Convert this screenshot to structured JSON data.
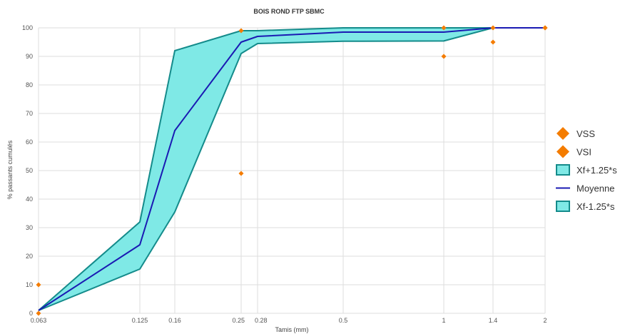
{
  "chart_data": {
    "type": "line",
    "title": "BOIS ROND FTP SBMC",
    "xlabel": "Tamis (mm)",
    "ylabel": "% passants cumulés",
    "ylim": [
      0,
      100
    ],
    "y_ticks": [
      0,
      10,
      20,
      30,
      40,
      50,
      60,
      70,
      80,
      90,
      100
    ],
    "x_ticks": [
      "0.063",
      "0.125",
      "0.16",
      "0.25",
      "0.28",
      "0.5",
      "1",
      "1.4",
      "2"
    ],
    "x": [
      0.063,
      0.125,
      0.16,
      0.25,
      0.28,
      0.5,
      1,
      1.4,
      2
    ],
    "grid": true,
    "legend_position": "right",
    "series": [
      {
        "name": "VSS",
        "kind": "marker",
        "color": "#f47c00",
        "points": [
          {
            "x": 0.063,
            "y": 10
          },
          {
            "x": 0.25,
            "y": 99
          },
          {
            "x": 1,
            "y": 100
          },
          {
            "x": 1.4,
            "y": 100
          },
          {
            "x": 2,
            "y": 100
          }
        ]
      },
      {
        "name": "VSI",
        "kind": "marker",
        "color": "#f47c00",
        "points": [
          {
            "x": 0.063,
            "y": 0
          },
          {
            "x": 0.25,
            "y": 49
          },
          {
            "x": 1,
            "y": 90
          },
          {
            "x": 1.4,
            "y": 95
          },
          {
            "x": 2,
            "y": 100
          }
        ]
      },
      {
        "name": "Xf+1.25*s",
        "kind": "band-upper",
        "color": "#148b8b",
        "fill": "#7fe9e6",
        "values": [
          1,
          32,
          92,
          99,
          99,
          100,
          100,
          100,
          100
        ]
      },
      {
        "name": "Moyenne",
        "kind": "line",
        "color": "#1a1ab3",
        "values": [
          1,
          24,
          64,
          95,
          97,
          98.5,
          98.5,
          100,
          100
        ]
      },
      {
        "name": "Xf-1.25*s",
        "kind": "band-lower",
        "color": "#148b8b",
        "fill": "#7fe9e6",
        "values": [
          1,
          15.5,
          35.5,
          91,
          94.5,
          95.3,
          95.4,
          100,
          100
        ]
      }
    ]
  }
}
